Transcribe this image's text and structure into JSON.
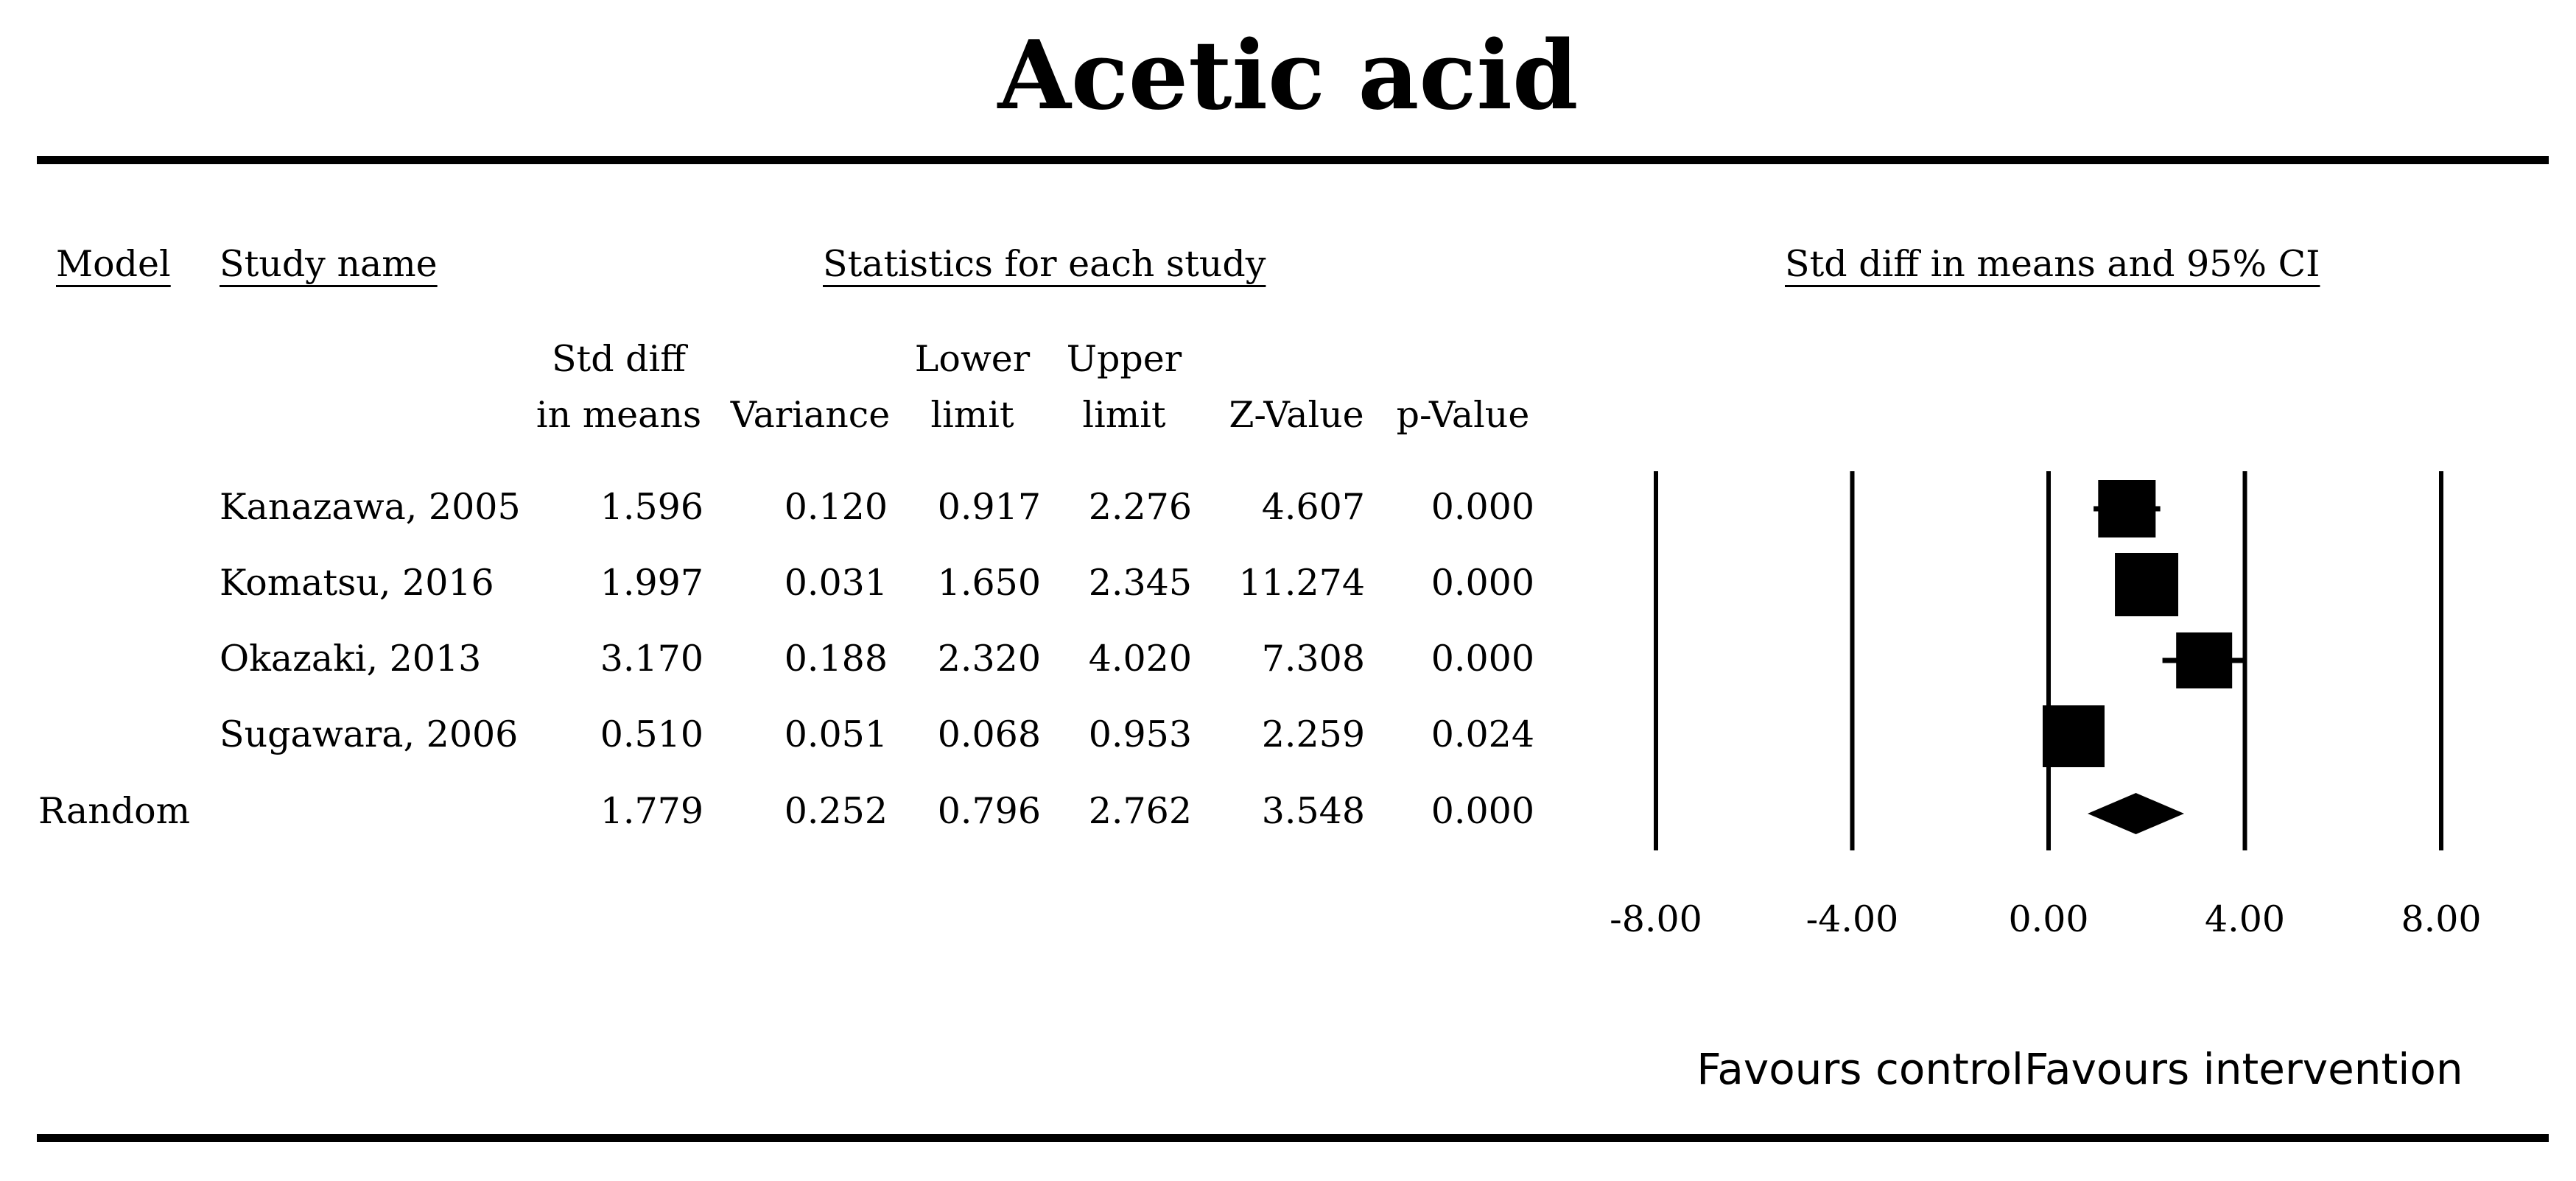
{
  "title": "Acetic acid",
  "headers": {
    "model": "Model",
    "study_name": "Study name",
    "statistics": "Statistics for each study",
    "plot": "Std diff in means and 95% CI"
  },
  "columns": [
    {
      "line1": "Std diff",
      "line2": "in means"
    },
    {
      "line1": "",
      "line2": "Variance"
    },
    {
      "line1": "Lower",
      "line2": "limit"
    },
    {
      "line1": "Upper",
      "line2": "limit"
    },
    {
      "line1": "",
      "line2": "Z-Value"
    },
    {
      "line1": "",
      "line2": "p-Value"
    }
  ],
  "rows": [
    {
      "model": "",
      "study": "Kanazawa, 2005",
      "values": [
        "1.596",
        "0.120",
        "0.917",
        "2.276",
        "4.607",
        "0.000"
      ]
    },
    {
      "model": "",
      "study": "Komatsu, 2016",
      "values": [
        "1.997",
        "0.031",
        "1.650",
        "2.345",
        "11.274",
        "0.000"
      ]
    },
    {
      "model": "",
      "study": "Okazaki, 2013",
      "values": [
        "3.170",
        "0.188",
        "2.320",
        "4.020",
        "7.308",
        "0.000"
      ]
    },
    {
      "model": "",
      "study": "Sugawara, 2006",
      "values": [
        "0.510",
        "0.051",
        "0.068",
        "0.953",
        "2.259",
        "0.024"
      ]
    },
    {
      "model": "Random",
      "study": "",
      "values": [
        "1.779",
        "0.252",
        "0.796",
        "2.762",
        "3.548",
        "0.000"
      ]
    }
  ],
  "axis": {
    "ticks": [
      "-8.00",
      "-4.00",
      "0.00",
      "4.00",
      "8.00"
    ],
    "tick_values": [
      -8,
      -4,
      0,
      4,
      8
    ],
    "xlim": [
      -8,
      8
    ],
    "left_label": "Favours control",
    "right_label": "Favours intervention"
  },
  "chart_data": {
    "type": "forest",
    "title": "Acetic acid",
    "xlabel": "Std diff in means and 95% CI",
    "xlim": [
      -8,
      8
    ],
    "xticks": [
      -8,
      -4,
      0,
      4,
      8
    ],
    "studies": [
      {
        "name": "Kanazawa, 2005",
        "estimate": 1.596,
        "lower": 0.917,
        "upper": 2.276,
        "weight": 0.27
      },
      {
        "name": "Komatsu, 2016",
        "estimate": 1.997,
        "lower": 1.65,
        "upper": 2.345,
        "weight": 0.31
      },
      {
        "name": "Okazaki, 2013",
        "estimate": 3.17,
        "lower": 2.32,
        "upper": 4.02,
        "weight": 0.26
      },
      {
        "name": "Sugawara, 2006",
        "estimate": 0.51,
        "lower": 0.068,
        "upper": 0.953,
        "weight": 0.3
      }
    ],
    "summary": {
      "name": "Random",
      "estimate": 1.779,
      "lower": 0.796,
      "upper": 2.762
    }
  }
}
